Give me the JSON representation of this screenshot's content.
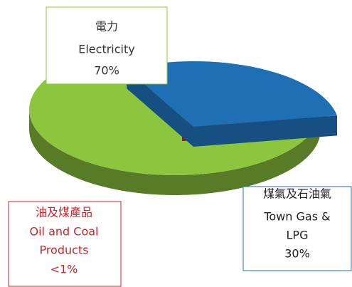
{
  "chart_data": {
    "type": "pie3d",
    "categories_zh": [
      "電力",
      "煤氣及石油氣",
      "油及煤產品"
    ],
    "categories": [
      [
        "Electricity"
      ],
      [
        "Town Gas &",
        "LPG"
      ],
      [
        "Oil and Coal",
        "Products"
      ]
    ],
    "values": [
      70,
      30,
      0.5
    ],
    "value_labels": [
      "70%",
      "30%",
      "<1%"
    ],
    "colors": [
      "#8cc63f",
      "#1f6fb5",
      "#c0282d"
    ]
  }
}
